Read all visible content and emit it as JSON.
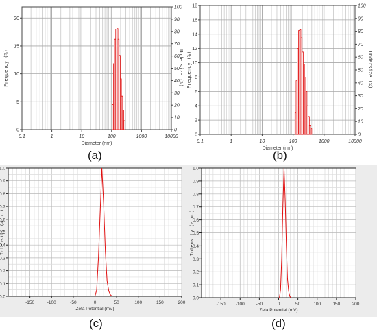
{
  "charts": [
    {
      "caption": "(a)",
      "chart_data": {
        "type": "histogram",
        "xlabel": "Diameter (nm)",
        "ylabel": "Frequency (%)",
        "ylabel_right": "Undersize (%)",
        "x_scale": "log",
        "xlim": [
          0.1,
          10000
        ],
        "ylim": [
          0,
          22
        ],
        "ylim_right": [
          0,
          100
        ],
        "x_ticks": [
          "0.1",
          "1",
          "10",
          "100",
          "1000",
          "10000"
        ],
        "y_ticks": [
          "0",
          "5",
          "10",
          "15",
          "20"
        ],
        "y_ticks_right": [
          "0",
          "10",
          "20",
          "30",
          "40",
          "50",
          "60",
          "70",
          "80",
          "90",
          "100"
        ],
        "grid": true,
        "bins": [
          {
            "x0": 105,
            "x1": 115,
            "y": 4.5
          },
          {
            "x0": 115,
            "x1": 125,
            "y": 11.8
          },
          {
            "x0": 125,
            "x1": 137,
            "y": 16.2
          },
          {
            "x0": 137,
            "x1": 150,
            "y": 18.0
          },
          {
            "x0": 150,
            "x1": 163,
            "y": 18.1
          },
          {
            "x0": 163,
            "x1": 178,
            "y": 16.2
          },
          {
            "x0": 178,
            "x1": 195,
            "y": 13.3
          },
          {
            "x0": 195,
            "x1": 213,
            "y": 9.1
          },
          {
            "x0": 213,
            "x1": 233,
            "y": 6.0
          },
          {
            "x0": 233,
            "x1": 255,
            "y": 3.5
          },
          {
            "x0": 255,
            "x1": 280,
            "y": 1.6
          }
        ]
      }
    },
    {
      "caption": "(b)",
      "chart_data": {
        "type": "histogram",
        "xlabel": "Diameter (nm)",
        "ylabel": "Frequency (%)",
        "ylabel_right": "Undersize (%)",
        "x_scale": "log",
        "xlim": [
          0.1,
          10000
        ],
        "ylim": [
          0,
          18
        ],
        "ylim_right": [
          0,
          100
        ],
        "x_ticks": [
          "0.1",
          "1",
          "10",
          "100",
          "1000",
          "10000"
        ],
        "y_ticks": [
          "0",
          "2",
          "4",
          "6",
          "8",
          "10",
          "12",
          "14",
          "16",
          "18"
        ],
        "y_ticks_right": [
          "0",
          "10",
          "20",
          "30",
          "40",
          "50",
          "60",
          "70",
          "80",
          "90",
          "100"
        ],
        "grid": true,
        "bins": [
          {
            "x0": 115,
            "x1": 125,
            "y": 3.0
          },
          {
            "x0": 125,
            "x1": 137,
            "y": 7.5
          },
          {
            "x0": 137,
            "x1": 150,
            "y": 12.0
          },
          {
            "x0": 150,
            "x1": 163,
            "y": 14.5
          },
          {
            "x0": 163,
            "x1": 178,
            "y": 14.6
          },
          {
            "x0": 178,
            "x1": 195,
            "y": 13.5
          },
          {
            "x0": 195,
            "x1": 213,
            "y": 11.5
          },
          {
            "x0": 213,
            "x1": 233,
            "y": 9.8
          },
          {
            "x0": 233,
            "x1": 255,
            "y": 8.0
          },
          {
            "x0": 255,
            "x1": 280,
            "y": 6.0
          },
          {
            "x0": 280,
            "x1": 305,
            "y": 4.0
          },
          {
            "x0": 305,
            "x1": 335,
            "y": 2.5
          },
          {
            "x0": 335,
            "x1": 365,
            "y": 1.3
          },
          {
            "x0": 365,
            "x1": 400,
            "y": 0.8
          }
        ]
      }
    },
    {
      "caption": "(c)",
      "chart_data": {
        "type": "line",
        "xlabel": "Zeta Potential (mV)",
        "ylabel": "Intensity (a.u.)",
        "xlim": [
          -200,
          200
        ],
        "ylim": [
          0,
          1.0
        ],
        "x_ticks": [
          "-150",
          "-100",
          "-50",
          "0",
          "50",
          "100",
          "150",
          "200"
        ],
        "y_ticks": [
          "0.0",
          "0.1",
          "0.2",
          "0.3",
          "0.4",
          "0.5",
          "0.6",
          "0.7",
          "0.8",
          "0.9",
          "1.0"
        ],
        "grid": true,
        "series": [
          {
            "x": [
              0,
              4,
              8,
              12,
              16,
              20,
              24,
              28,
              32,
              36,
              40
            ],
            "y": [
              0.0,
              0.05,
              0.3,
              0.65,
              1.0,
              0.72,
              0.35,
              0.12,
              0.04,
              0.01,
              0.0
            ]
          }
        ]
      }
    },
    {
      "caption": "(d)",
      "chart_data": {
        "type": "line",
        "xlabel": "Zeta Potential (mV)",
        "ylabel": "Intensity (a.u.)",
        "xlim": [
          -200,
          200
        ],
        "ylim": [
          0,
          1.0
        ],
        "x_ticks": [
          "-150",
          "-100",
          "-50",
          "0",
          "50",
          "100",
          "150",
          "200"
        ],
        "y_ticks": [
          "0.0",
          "0.1",
          "0.2",
          "0.3",
          "0.4",
          "0.5",
          "0.6",
          "0.7",
          "0.8",
          "0.9",
          "1.0"
        ],
        "grid": true,
        "series": [
          {
            "x": [
              2,
              5,
              8,
              11,
              14,
              17,
              20,
              23,
              26,
              29,
              32
            ],
            "y": [
              0.0,
              0.06,
              0.3,
              0.7,
              1.0,
              0.75,
              0.4,
              0.15,
              0.05,
              0.01,
              0.0
            ]
          }
        ]
      }
    }
  ]
}
